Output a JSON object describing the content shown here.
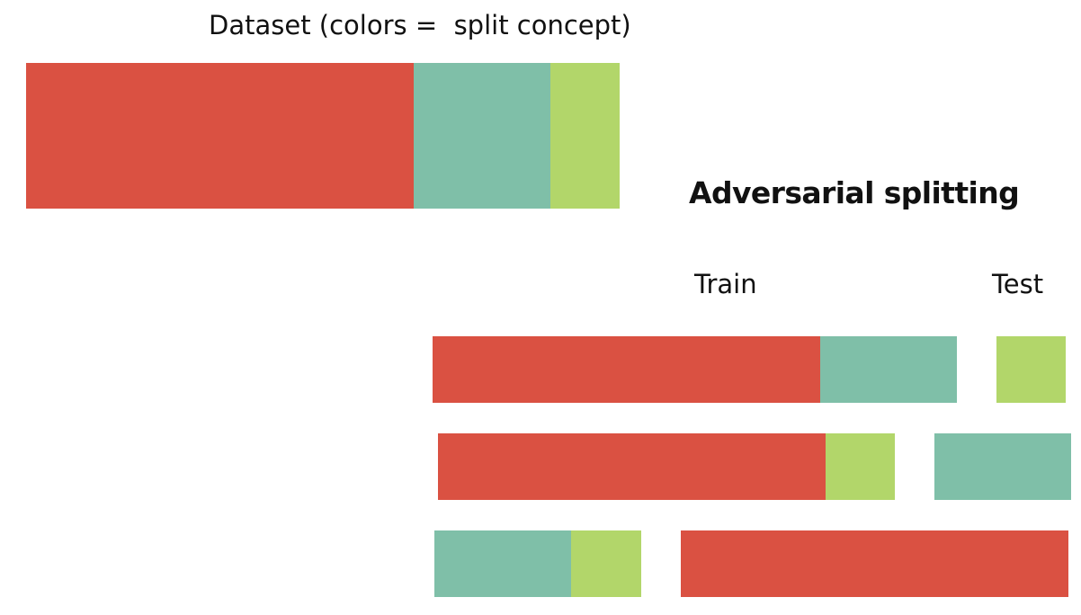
{
  "title": "Dataset (colors =  split concept)",
  "heading": "Adversarial splitting",
  "columns": {
    "train_label": "Train",
    "test_label": "Test"
  },
  "colors": {
    "red": "#da5142",
    "teal": "#7fbfa8",
    "green": "#b2d66a"
  },
  "dataset_bar": {
    "segments": [
      {
        "color": "red"
      },
      {
        "color": "teal"
      },
      {
        "color": "green"
      }
    ]
  },
  "splits": [
    {
      "train": [
        {
          "color": "red"
        },
        {
          "color": "teal"
        }
      ],
      "test": [
        {
          "color": "green"
        }
      ]
    },
    {
      "train": [
        {
          "color": "red"
        },
        {
          "color": "green"
        }
      ],
      "test": [
        {
          "color": "teal"
        }
      ]
    },
    {
      "train": [
        {
          "color": "teal"
        },
        {
          "color": "green"
        }
      ],
      "test": [
        {
          "color": "red"
        }
      ]
    }
  ]
}
